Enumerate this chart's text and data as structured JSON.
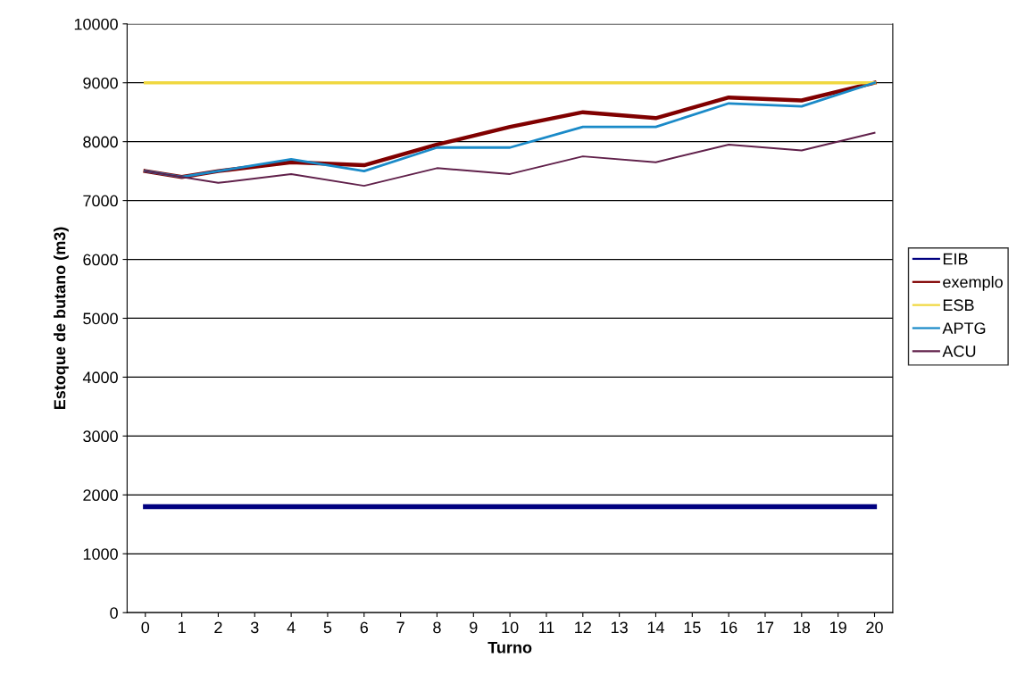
{
  "chart_data": {
    "type": "line",
    "xlabel": "Turno",
    "ylabel": "Estoque de butano (m3)",
    "xlim": [
      -0.5,
      20.5
    ],
    "xticks": [
      0,
      1,
      2,
      3,
      4,
      5,
      6,
      7,
      8,
      9,
      10,
      11,
      12,
      13,
      14,
      15,
      16,
      17,
      18,
      19,
      20
    ],
    "ylim": [
      0,
      10000
    ],
    "yticks": [
      0,
      1000,
      2000,
      3000,
      4000,
      5000,
      6000,
      7000,
      8000,
      9000,
      10000
    ],
    "grid": "y",
    "legend": "right",
    "marker": "none",
    "line_style": "solid",
    "series": [
      {
        "name": "EIB",
        "color": "#000080",
        "x": [
          0,
          20
        ],
        "values": [
          1800,
          1800
        ]
      },
      {
        "name": "exemplo",
        "color": "#800000",
        "x": [
          0,
          1,
          2,
          4,
          6,
          8,
          10,
          12,
          14,
          16,
          18,
          20
        ],
        "values": [
          7500,
          7400,
          7500,
          7650,
          7600,
          7950,
          8250,
          8500,
          8400,
          8750,
          8700,
          9000
        ]
      },
      {
        "name": "ESB",
        "color": "#f0d840",
        "x": [
          0,
          20
        ],
        "values": [
          9000,
          9000
        ]
      },
      {
        "name": "APTG",
        "color": "#1a8ac8",
        "x": [
          0,
          1,
          2,
          4,
          6,
          8,
          10,
          12,
          14,
          16,
          18,
          20
        ],
        "values": [
          7500,
          7400,
          7500,
          7700,
          7500,
          7900,
          7900,
          8250,
          8250,
          8650,
          8600,
          9000
        ]
      },
      {
        "name": "ACU",
        "color": "#60204a",
        "x": [
          0,
          2,
          4,
          6,
          8,
          10,
          12,
          14,
          16,
          18,
          20
        ],
        "values": [
          7500,
          7300,
          7450,
          7250,
          7550,
          7450,
          7750,
          7650,
          7950,
          7850,
          8150
        ]
      }
    ]
  }
}
